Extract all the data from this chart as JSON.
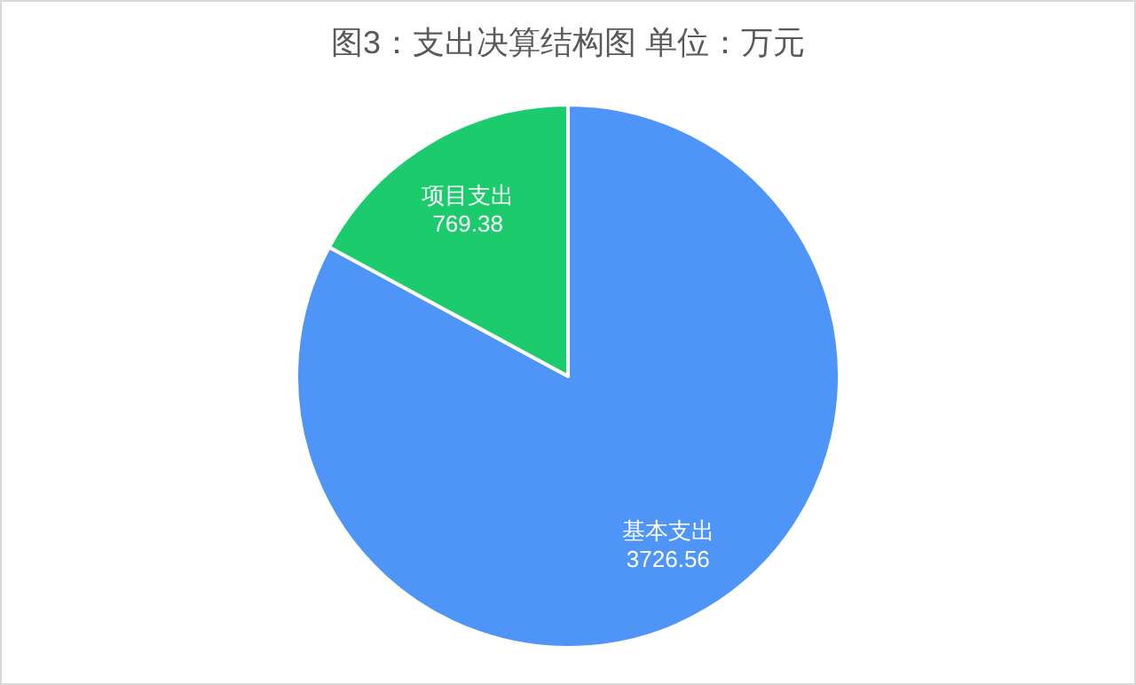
{
  "chart_data": {
    "type": "pie",
    "title": "图3：支出决算结构图  单位：万元",
    "categories": [
      "基本支出",
      "项目支出"
    ],
    "values": [
      3726.56,
      769.38
    ],
    "colors": [
      "#4f95f7",
      "#1ccb6c"
    ],
    "data_labels": true
  }
}
